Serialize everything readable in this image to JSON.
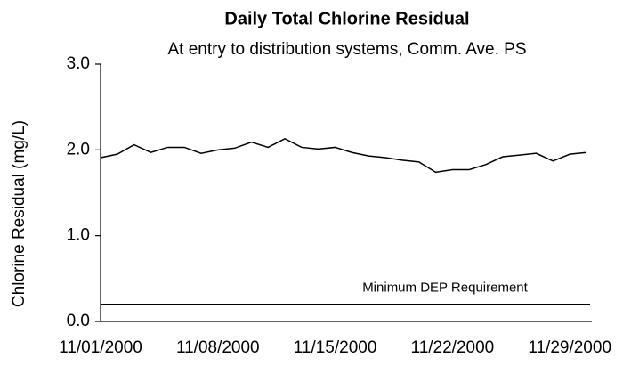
{
  "chart_data": {
    "type": "line",
    "title": "Daily Total Chlorine Residual",
    "subtitle": "At entry to distribution systems, Comm. Ave. PS",
    "y_label": "Chlorine Residual (mg/L)",
    "categories": [
      "11/01/2000",
      null,
      null,
      null,
      null,
      null,
      null,
      "11/08/2000",
      null,
      null,
      null,
      null,
      null,
      null,
      "11/15/2000",
      null,
      null,
      null,
      null,
      null,
      null,
      "11/22/2000",
      null,
      null,
      null,
      null,
      null,
      null,
      "11/29/2000",
      null
    ],
    "series": [
      {
        "name": "Daily Total Chlorine Residual",
        "color": "#000000",
        "values": [
          1.91,
          1.95,
          2.06,
          1.97,
          2.03,
          2.03,
          1.96,
          2.0,
          2.02,
          2.09,
          2.03,
          2.13,
          2.03,
          2.01,
          2.03,
          1.97,
          1.93,
          1.91,
          1.88,
          1.86,
          1.74,
          1.77,
          1.77,
          1.83,
          1.92,
          1.94,
          1.96,
          1.87,
          1.95,
          1.97
        ]
      }
    ],
    "reference_line": {
      "value": 0.2,
      "label": "Minimum DEP Requirement"
    },
    "ylim": [
      0,
      3
    ],
    "yticks": [
      {
        "value": 0,
        "label": "0.0"
      },
      {
        "value": 1,
        "label": "1.0"
      },
      {
        "value": 2,
        "label": "2.0"
      },
      {
        "value": 3,
        "label": "3.0"
      }
    ]
  }
}
